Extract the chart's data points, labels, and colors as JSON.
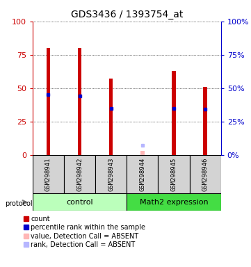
{
  "title": "GDS3436 / 1393754_at",
  "samples": [
    "GSM298941",
    "GSM298942",
    "GSM298943",
    "GSM298944",
    "GSM298945",
    "GSM298946"
  ],
  "groups": [
    "control",
    "control",
    "control",
    "Math2 expression",
    "Math2 expression",
    "Math2 expression"
  ],
  "count_values": [
    80,
    80,
    57,
    3,
    63,
    51
  ],
  "percentile_values": [
    45,
    44,
    35,
    null,
    35,
    34
  ],
  "absent_count": [
    null,
    null,
    null,
    3,
    null,
    null
  ],
  "absent_rank": [
    null,
    null,
    null,
    7,
    null,
    null
  ],
  "ylim": [
    0,
    100
  ],
  "bar_color": "#cc0000",
  "percentile_color": "#0000cc",
  "absent_count_color": "#ffb6b6",
  "absent_rank_color": "#b6b6ff",
  "left_axis_color": "#cc0000",
  "right_axis_color": "#0000cc",
  "group_colors": {
    "control": "#bbffbb",
    "Math2 expression": "#44dd44"
  },
  "yticks": [
    0,
    25,
    50,
    75,
    100
  ],
  "bar_width": 0.12
}
